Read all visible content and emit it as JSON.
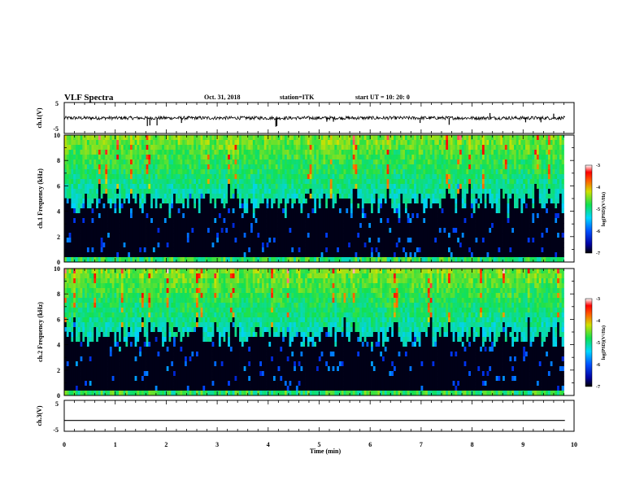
{
  "header": {
    "title": "VLF Spectra",
    "date": "Oct. 31, 2018",
    "station": "station=ITK",
    "start_ut": "start  UT  =   10: 20: 0"
  },
  "chart_data": [
    {
      "type": "line",
      "ylabel": "ch.1(V)",
      "ylim": [
        -5,
        5
      ],
      "yticks": [
        "5",
        "-5"
      ],
      "xlim": [
        0,
        10
      ],
      "baseline": 0,
      "spikes": [
        {
          "x": 1.63,
          "y": -2.6
        },
        {
          "x": 1.68,
          "y": -2.4
        },
        {
          "x": 1.82,
          "y": -2.4
        },
        {
          "x": 2.3,
          "y": -1.6
        },
        {
          "x": 4.15,
          "y": -2.8
        },
        {
          "x": 4.17,
          "y": -2.6
        },
        {
          "x": 5.15,
          "y": -1.2
        },
        {
          "x": 5.28,
          "y": -1.2
        },
        {
          "x": 6.98,
          "y": -1.6
        },
        {
          "x": 7.55,
          "y": -2.2
        },
        {
          "x": 8.35,
          "y": 1.6
        },
        {
          "x": 9.05,
          "y": -1.4
        },
        {
          "x": 9.35,
          "y": -1.4
        },
        {
          "x": 9.6,
          "y": 1.4
        }
      ]
    },
    {
      "type": "heatmap",
      "ylabel": "ch.1 Frequency (kHz)",
      "ylim": [
        0,
        10
      ],
      "yticks": [
        "0",
        "2",
        "4",
        "6",
        "8",
        "10"
      ],
      "xlim": [
        0,
        9.8
      ],
      "colorbar": {
        "label": "log(PSD)(V²/Hz)",
        "range": [
          -7,
          -3
        ],
        "ticks": [
          "-3",
          "-4",
          "-5",
          "-6",
          "-7"
        ]
      }
    },
    {
      "type": "heatmap",
      "ylabel": "ch.2 Frequency (kHz)",
      "ylim": [
        0,
        10
      ],
      "yticks": [
        "0",
        "2",
        "4",
        "6",
        "8",
        "10"
      ],
      "xlim": [
        0,
        9.8
      ],
      "colorbar": {
        "label": "log(PSD)(V²/Hz)",
        "range": [
          -7,
          -3
        ],
        "ticks": [
          "-3",
          "-4",
          "-5",
          "-6",
          "-7"
        ]
      }
    },
    {
      "type": "line",
      "ylabel": "ch.3(V)",
      "ylim": [
        -5,
        5
      ],
      "yticks": [
        "5",
        "-5"
      ],
      "xlim": [
        0,
        10
      ],
      "baseline": -1.5,
      "xlabel": "Time  (min)",
      "xticks": [
        "0",
        "1",
        "2",
        "3",
        "4",
        "5",
        "6",
        "7",
        "8",
        "9",
        "10"
      ]
    }
  ],
  "colors": {
    "background": "#000000",
    "low": "#00108c",
    "mid": "#10e050",
    "high": "#ff1010"
  }
}
